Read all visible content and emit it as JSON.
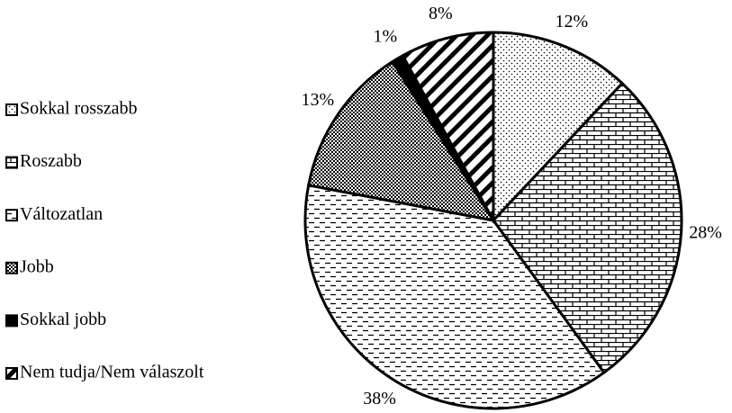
{
  "chart_data": {
    "type": "pie",
    "categories": [
      "Sokkal rosszabb",
      "Roszabb",
      "Változatlan",
      "Jobb",
      "Sokkal jobb",
      "Nem tudja/Nem válaszolt"
    ],
    "values": [
      12,
      28,
      38,
      13,
      1,
      8
    ],
    "value_labels": [
      "12%",
      "28%",
      "38%",
      "13%",
      "1%",
      "8%"
    ],
    "patterns": [
      "dots",
      "bricks",
      "dashes",
      "checker",
      "solid",
      "stripes"
    ],
    "legend": "left"
  }
}
